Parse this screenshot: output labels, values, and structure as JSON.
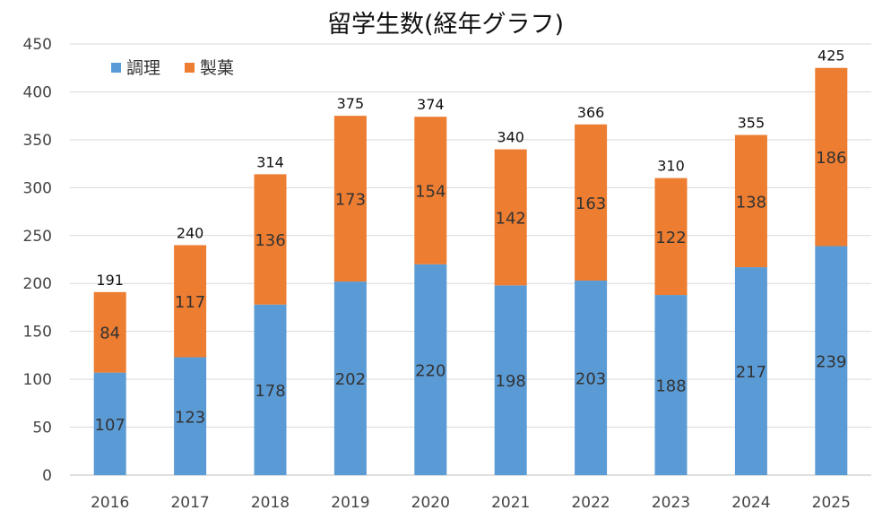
{
  "chart_data": {
    "type": "bar",
    "stacked": true,
    "title": "留学生数(経年グラフ)",
    "categories": [
      "2016",
      "2017",
      "2018",
      "2019",
      "2020",
      "2021",
      "2022",
      "2023",
      "2024",
      "2025"
    ],
    "series": [
      {
        "name": "調理",
        "color": "#5b9bd5",
        "values": [
          107,
          123,
          178,
          202,
          220,
          198,
          203,
          188,
          217,
          239
        ]
      },
      {
        "name": "製菓",
        "color": "#ed7d31",
        "values": [
          84,
          117,
          136,
          173,
          154,
          142,
          163,
          122,
          138,
          186
        ]
      }
    ],
    "totals": [
      191,
      240,
      314,
      375,
      374,
      340,
      366,
      310,
      355,
      425
    ],
    "ylim": [
      0,
      450
    ],
    "yticks": [
      0,
      50,
      100,
      150,
      200,
      250,
      300,
      350,
      400,
      450
    ],
    "xlabel": "",
    "ylabel": "",
    "grid": true,
    "legend_position": "top-left"
  }
}
